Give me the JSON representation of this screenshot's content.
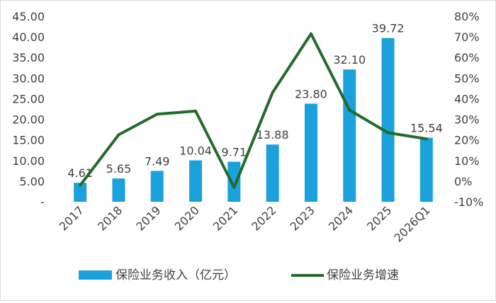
{
  "chart_data": {
    "type": "bar",
    "categories": [
      "2017",
      "2018",
      "2019",
      "2020",
      "2021",
      "2022",
      "2023",
      "2024",
      "2025",
      "2026Q1"
    ],
    "y_left": {
      "ticks": [
        "45.00",
        "40.00",
        "35.00",
        "30.00",
        "25.00",
        "20.00",
        "15.00",
        "10.00",
        "5.00",
        "-"
      ],
      "ylim": [
        0,
        45
      ]
    },
    "y_right": {
      "ticks": [
        "80%",
        "70%",
        "60%",
        "50%",
        "40%",
        "30%",
        "20%",
        "10%",
        "0%",
        "-10%"
      ],
      "ylim": [
        -0.1,
        0.8
      ]
    },
    "series": [
      {
        "name": "保险业务收入（亿元）",
        "type": "bar",
        "axis": "left",
        "color": "#1ba1dc",
        "values": [
          4.61,
          5.65,
          7.49,
          10.04,
          9.71,
          13.88,
          23.8,
          32.1,
          39.72,
          15.54
        ],
        "labels": [
          "4.61",
          "5.65",
          "7.49",
          "10.04",
          "9.71",
          "13.88",
          "23.80",
          "32.10",
          "39.72",
          "15.54"
        ]
      },
      {
        "name": "保险业务增速",
        "type": "line",
        "axis": "right",
        "color": "#236b2b",
        "values": [
          -0.02,
          0.225,
          0.325,
          0.34,
          -0.03,
          0.43,
          0.715,
          0.345,
          0.235,
          0.205
        ]
      }
    ],
    "legend_position": "bottom",
    "grid": false
  }
}
